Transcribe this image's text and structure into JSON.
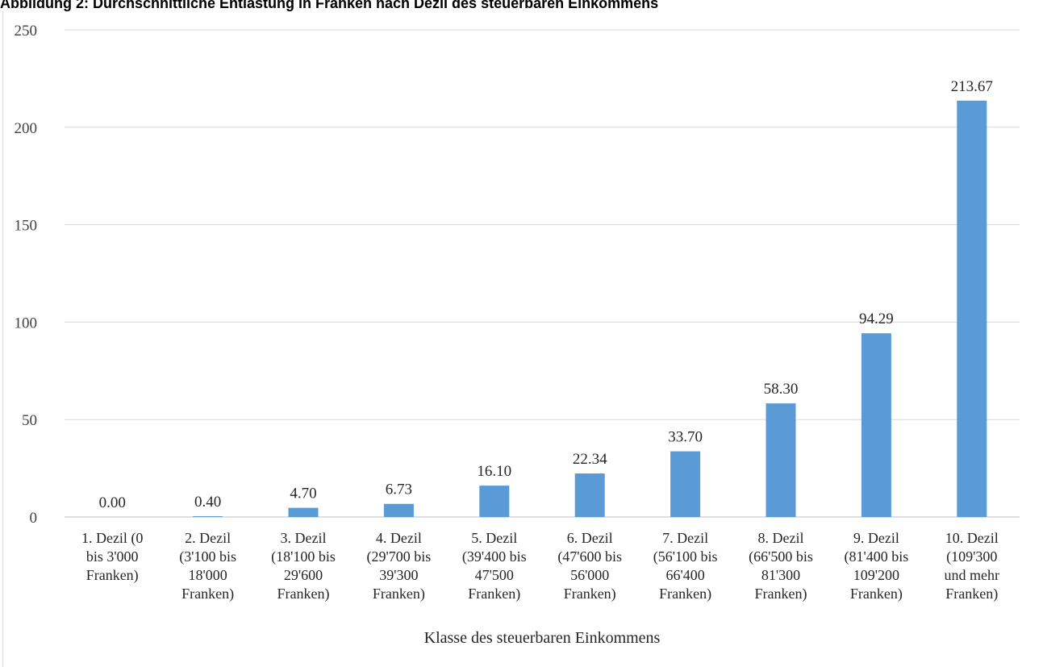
{
  "chart_data": {
    "type": "bar",
    "title": "Abbildung 2:  Durchschnittliche Entlastung in Franken nach Dezil des steuerbaren Einkommens",
    "xlabel": "Klasse des steuerbaren Einkommens",
    "ylabel": "",
    "ylim": [
      0,
      250
    ],
    "yticks": [
      0,
      50,
      100,
      150,
      200,
      250
    ],
    "grid": true,
    "bar_color": "#5b9bd5",
    "categories": [
      [
        "1. Dezil (0",
        "bis 3'000",
        "Franken)"
      ],
      [
        "2. Dezil",
        "(3'100 bis",
        "18'000",
        "Franken)"
      ],
      [
        "3. Dezil",
        "(18'100 bis",
        "29'600",
        "Franken)"
      ],
      [
        "4. Dezil",
        "(29'700 bis",
        "39'300",
        "Franken)"
      ],
      [
        "5. Dezil",
        "(39'400 bis",
        "47'500",
        "Franken)"
      ],
      [
        "6. Dezil",
        "(47'600 bis",
        "56'000",
        "Franken)"
      ],
      [
        "7. Dezil",
        "(56'100 bis",
        "66'400",
        "Franken)"
      ],
      [
        "8. Dezil",
        "(66'500 bis",
        "81'300",
        "Franken)"
      ],
      [
        "9. Dezil",
        "(81'400 bis",
        "109'200",
        "Franken)"
      ],
      [
        "10. Dezil",
        "(109'300",
        "und mehr",
        "Franken)"
      ]
    ],
    "values": [
      0.0,
      0.4,
      4.7,
      6.73,
      16.1,
      22.34,
      33.7,
      58.3,
      94.29,
      213.67
    ],
    "data_labels": [
      "0.00",
      "0.40",
      "4.70",
      "6.73",
      "16.10",
      "22.34",
      "33.70",
      "58.30",
      "94.29",
      "213.67"
    ]
  }
}
